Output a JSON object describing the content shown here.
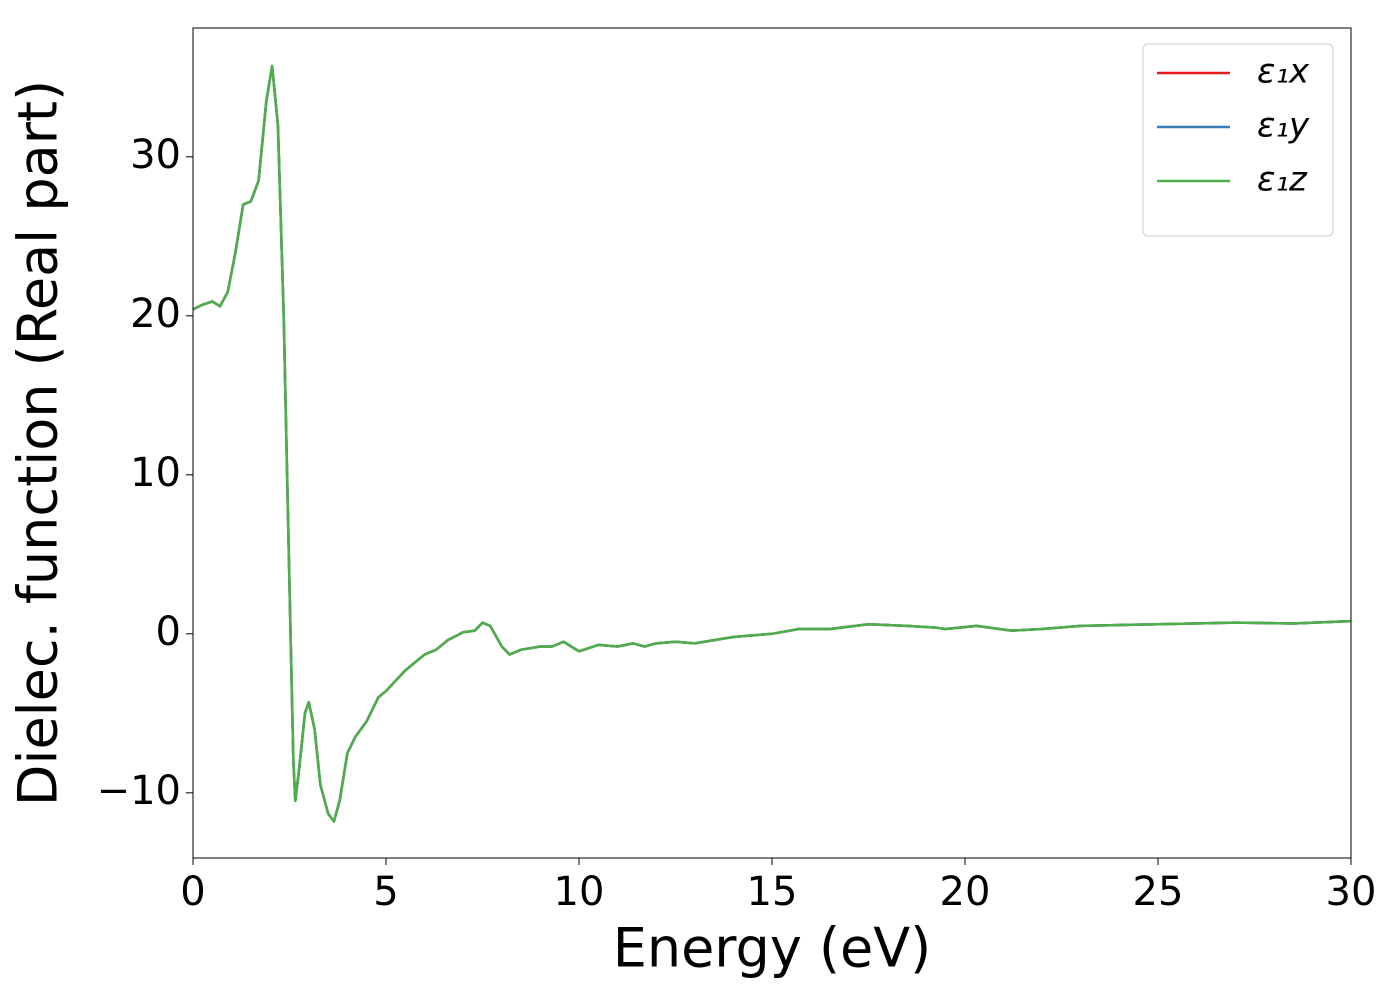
{
  "chart_data": {
    "type": "line",
    "xlabel": "Energy (eV)",
    "ylabel": "Dielec. function (Real part)",
    "x": [
      0,
      0.25,
      0.5,
      0.7,
      0.9,
      1.1,
      1.3,
      1.5,
      1.7,
      1.9,
      2.05,
      2.2,
      2.35,
      2.5,
      2.6,
      2.65,
      2.75,
      2.9,
      3.0,
      3.15,
      3.3,
      3.5,
      3.65,
      3.8,
      4.0,
      4.2,
      4.5,
      4.8,
      5.0,
      5.5,
      6.0,
      6.3,
      6.6,
      7.0,
      7.3,
      7.5,
      7.7,
      8.0,
      8.2,
      8.5,
      9.0,
      9.3,
      9.6,
      10.0,
      10.5,
      11.0,
      11.4,
      11.7,
      12.0,
      12.5,
      13.0,
      13.5,
      14.0,
      15.0,
      15.7,
      16.5,
      17.5,
      18.5,
      19.2,
      19.5,
      20.3,
      21.2,
      22,
      23,
      25,
      27,
      28.5,
      30
    ],
    "series": [
      {
        "name": "ε₁x",
        "color": "#e41a1c",
        "values": [
          20.4,
          20.7,
          20.9,
          20.6,
          21.5,
          24.0,
          27.0,
          27.2,
          28.5,
          33.5,
          35.7,
          32,
          20,
          3,
          -8,
          -10.5,
          -8.5,
          -5,
          -4.3,
          -6,
          -9.5,
          -11.3,
          -11.8,
          -10.5,
          -7.5,
          -6.5,
          -5.5,
          -4,
          -3.6,
          -2.3,
          -1.3,
          -1.0,
          -0.4,
          0.1,
          0.2,
          0.7,
          0.5,
          -0.8,
          -1.3,
          -1.0,
          -0.8,
          -0.8,
          -0.5,
          -1.1,
          -0.7,
          -0.8,
          -0.6,
          -0.8,
          -0.6,
          -0.5,
          -0.6,
          -0.4,
          -0.2,
          0.0,
          0.3,
          0.3,
          0.6,
          0.5,
          0.4,
          0.3,
          0.5,
          0.2,
          0.3,
          0.5,
          0.6,
          0.7,
          0.65,
          0.8
        ]
      },
      {
        "name": "ε₁y",
        "color": "#377eb8",
        "values": [
          20.4,
          20.7,
          20.9,
          20.6,
          21.5,
          24.0,
          27.0,
          27.2,
          28.5,
          33.5,
          35.7,
          32,
          20,
          3,
          -8,
          -10.5,
          -8.5,
          -5,
          -4.3,
          -6,
          -9.5,
          -11.3,
          -11.8,
          -10.5,
          -7.5,
          -6.5,
          -5.5,
          -4,
          -3.6,
          -2.3,
          -1.3,
          -1.0,
          -0.4,
          0.1,
          0.2,
          0.7,
          0.5,
          -0.8,
          -1.3,
          -1.0,
          -0.8,
          -0.8,
          -0.5,
          -1.1,
          -0.7,
          -0.8,
          -0.6,
          -0.8,
          -0.6,
          -0.5,
          -0.6,
          -0.4,
          -0.2,
          0.0,
          0.3,
          0.3,
          0.6,
          0.5,
          0.4,
          0.3,
          0.5,
          0.2,
          0.3,
          0.5,
          0.6,
          0.7,
          0.65,
          0.8
        ]
      },
      {
        "name": "ε₁z",
        "color": "#4daf4a",
        "values": [
          20.4,
          20.7,
          20.9,
          20.6,
          21.5,
          24.0,
          27.0,
          27.2,
          28.5,
          33.5,
          35.7,
          32,
          20,
          3,
          -8,
          -10.5,
          -8.5,
          -5,
          -4.3,
          -6,
          -9.5,
          -11.3,
          -11.8,
          -10.5,
          -7.5,
          -6.5,
          -5.5,
          -4,
          -3.6,
          -2.3,
          -1.3,
          -1.0,
          -0.4,
          0.1,
          0.2,
          0.7,
          0.5,
          -0.8,
          -1.3,
          -1.0,
          -0.8,
          -0.8,
          -0.5,
          -1.1,
          -0.7,
          -0.8,
          -0.6,
          -0.8,
          -0.6,
          -0.5,
          -0.6,
          -0.4,
          -0.2,
          0.0,
          0.3,
          0.3,
          0.6,
          0.5,
          0.4,
          0.3,
          0.5,
          0.2,
          0.3,
          0.5,
          0.6,
          0.7,
          0.65,
          0.8
        ]
      }
    ],
    "xlim": [
      0,
      30
    ],
    "xticks": [
      0,
      5,
      10,
      15,
      20,
      25,
      30
    ],
    "ylim": [
      -14.1,
      38.1
    ],
    "yticks": [
      {
        "value": -10,
        "label": "−10"
      },
      0,
      10,
      20,
      30
    ],
    "grid": false,
    "legend": "upper right"
  }
}
